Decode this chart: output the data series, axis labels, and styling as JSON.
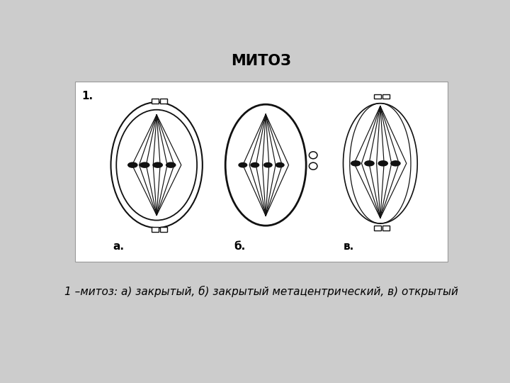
{
  "title": "МИТОЗ",
  "title_fontsize": 15,
  "title_fontweight": "bold",
  "bg_color": "#cccccc",
  "box_color": "#ffffff",
  "caption": "1 –митоз: а) закрытый, б) закрытый метацентрический, в) открытый",
  "caption_fontsize": 11,
  "label_1": "1.",
  "label_a": "а.",
  "label_b": "б.",
  "label_v": "в.",
  "line_color": "#111111",
  "chromosome_color": "#111111"
}
